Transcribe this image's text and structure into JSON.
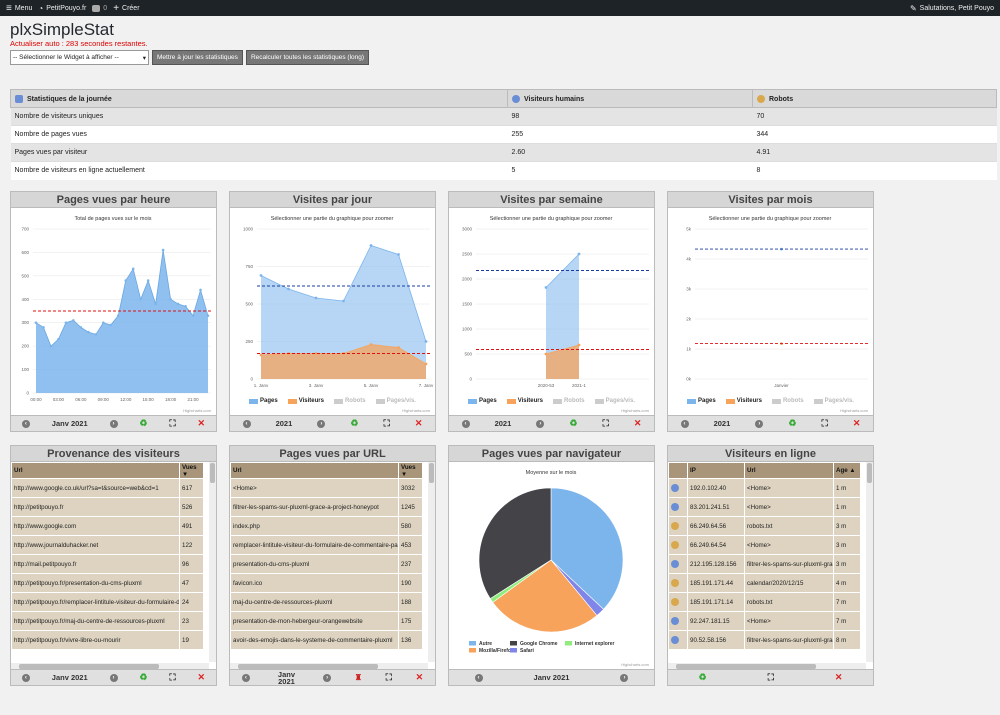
{
  "topbar": {
    "menu": "Menu",
    "site": "PetitPouyo.fr",
    "comments": "0",
    "create": "Créer",
    "greeting": "Salutations, Petit Pouyo"
  },
  "page": {
    "title": "plxSimpleStat",
    "refresh": "Actualiser auto : 283 secondes restantes."
  },
  "controls": {
    "select": "-- Sélectionner le Widget à afficher --",
    "update": "Mettre à jour les statistiques",
    "recalc": "Recalculer toutes les statistiques (long)"
  },
  "stats": {
    "headers": [
      "Statistiques de la journée",
      "Visiteurs humains",
      "Robots"
    ],
    "rows": [
      [
        "Nombre de visiteurs uniques",
        "98",
        "70"
      ],
      [
        "Nombre de pages vues",
        "255",
        "344"
      ],
      [
        "Pages vues par visiteur",
        "2.60",
        "4.91"
      ],
      [
        "Nombre de visiteurs en ligne actuellement",
        "5",
        "8"
      ]
    ]
  },
  "widgets": {
    "w1": {
      "title": "Pages vues par heure",
      "subtitle": "Total de pages vues sur le mois",
      "footer": "Janv 2021",
      "credit": "Highcharts.com"
    },
    "w2": {
      "title": "Visites par jour",
      "subtitle": "Sélectionner une partie du graphique pour zoomer",
      "footer": "2021",
      "credit": "Highcharts.com"
    },
    "w3": {
      "title": "Visites par semaine",
      "subtitle": "Sélectionner une partie du graphique pour zoomer",
      "footer": "2021",
      "credit": "Highcharts.com"
    },
    "w4": {
      "title": "Visites par mois",
      "subtitle": "Sélectionner une partie du graphique pour zoomer",
      "footer": "2021",
      "credit": "Highcharts.com"
    },
    "w5": {
      "title": "Provenance des visiteurs",
      "footer": "Janv 2021",
      "headers": [
        "Url",
        "Vues ▼"
      ],
      "rows": [
        [
          "http://www.google.co.uk/url?sa=t&source=web&cd=1",
          "617"
        ],
        [
          "http://petitpouyo.fr",
          "526"
        ],
        [
          "http://www.google.com",
          "491"
        ],
        [
          "http://www.journalduhacker.net",
          "122"
        ],
        [
          "http://mail.petitpouyo.fr",
          "96"
        ],
        [
          "http://petitpouyo.fr/presentation-du-cms-pluxml",
          "47"
        ],
        [
          "http://petitpouyo.fr/remplacer-lintitule-visiteur-du-formulaire-de-com",
          "24"
        ],
        [
          "http://petitpouyo.fr/maj-du-centre-de-ressources-pluxml",
          "23"
        ],
        [
          "http://petitpouyo.fr/vivre-libre-ou-mourir",
          "19"
        ]
      ]
    },
    "w6": {
      "title": "Pages vues par URL",
      "footer": "Janv 2021",
      "headers": [
        "Url",
        "Vues ▼"
      ],
      "rows": [
        [
          "<Home>",
          "3032"
        ],
        [
          "filtrer-les-spams-sur-pluxml-grace-a-project-honeypot",
          "1245"
        ],
        [
          "index.php",
          "580"
        ],
        [
          "remplacer-lintitule-visiteur-du-formulaire-de-commentaire-par-le-te",
          "453"
        ],
        [
          "presentation-du-cms-pluxml",
          "237"
        ],
        [
          "favicon.ico",
          "190"
        ],
        [
          "maj-du-centre-de-ressources-pluxml",
          "188"
        ],
        [
          "presentation-de-mon-hebergeur-orangewebsite",
          "175"
        ],
        [
          "avoir-des-emojis-dans-le-systeme-de-commentaire-pluxml",
          "136"
        ]
      ]
    },
    "w7": {
      "title": "Pages vues par navigateur",
      "subtitle": "Moyenne sur le mois",
      "footer": "Janv 2021",
      "credit": "Highcharts.com"
    },
    "w8": {
      "title": "Visiteurs en ligne",
      "headers": [
        "",
        "IP",
        "Url",
        "Age ▲"
      ],
      "rows": [
        [
          "h",
          "192.0.102.40",
          "<Home>",
          "1 m"
        ],
        [
          "h",
          "83.201.241.51",
          "<Home>",
          "1 m"
        ],
        [
          "r",
          "66.249.64.56",
          "robots.txt",
          "3 m"
        ],
        [
          "r",
          "66.249.64.54",
          "<Home>",
          "3 m"
        ],
        [
          "h",
          "212.195.128.156",
          "filtrer-les-spams-sur-pluxml-grace-a-pro",
          "3 m"
        ],
        [
          "r",
          "185.191.171.44",
          "calendar/2020/12/15",
          "4 m"
        ],
        [
          "r",
          "185.191.171.14",
          "robots.txt",
          "7 m"
        ],
        [
          "h",
          "92.247.181.15",
          "<Home>",
          "7 m"
        ],
        [
          "h",
          "90.52.58.156",
          "filtrer-les-spams-sur-pluxml-grace-a-pro",
          "8 m"
        ]
      ]
    }
  },
  "legend": {
    "pages": "Pages",
    "visiteurs": "Visiteurs",
    "robots": "Robots",
    "ppv": "Pages/vis."
  },
  "chart_data": [
    {
      "type": "area",
      "x": [
        "00:00",
        "01:00",
        "02:00",
        "03:00",
        "04:00",
        "05:00",
        "06:00",
        "07:00",
        "08:00",
        "09:00",
        "10:00",
        "11:00",
        "12:00",
        "13:00",
        "14:00",
        "15:00",
        "16:00",
        "17:00",
        "18:00",
        "19:00",
        "20:00",
        "21:00",
        "22:00",
        "23:00"
      ],
      "values": [
        300,
        280,
        200,
        230,
        300,
        310,
        280,
        260,
        250,
        300,
        290,
        330,
        480,
        530,
        400,
        480,
        380,
        610,
        400,
        380,
        370,
        330,
        440,
        330
      ],
      "ylim": [
        0,
        700
      ],
      "xticks": [
        "00:00",
        "03:00",
        "06:00",
        "09:00",
        "12:00",
        "15:00",
        "18:00",
        "21:00"
      ],
      "average": 350
    },
    {
      "type": "area",
      "x": [
        "1. Janv",
        "2. Janv",
        "3. Janv",
        "4. Janv",
        "5. Janv",
        "6. Janv",
        "7. Janv"
      ],
      "series": [
        {
          "name": "Pages",
          "values": [
            690,
            600,
            540,
            520,
            890,
            830,
            250
          ]
        },
        {
          "name": "Visiteurs",
          "values": [
            160,
            170,
            170,
            170,
            230,
            210,
            100
          ]
        }
      ],
      "ylim": [
        0,
        1000
      ],
      "xticks": [
        "1. Janv",
        "3. Janv",
        "5. Janv",
        "7. Janv"
      ],
      "avg_pages": 620,
      "avg_visiteurs": 170
    },
    {
      "type": "area",
      "x": [
        "2020-53",
        "2021-1"
      ],
      "series": [
        {
          "name": "Pages",
          "values": [
            1830,
            2500
          ]
        },
        {
          "name": "Visiteurs",
          "values": [
            500,
            680
          ]
        }
      ],
      "ylim": [
        0,
        3000
      ],
      "avg_pages": 2170,
      "avg_visiteurs": 590
    },
    {
      "type": "line",
      "x": [
        "Janvier"
      ],
      "series": [
        {
          "name": "Pages",
          "values": [
            4330
          ]
        },
        {
          "name": "Visiteurs",
          "values": [
            1180
          ]
        }
      ],
      "ylim": [
        0,
        5000
      ],
      "yticks": [
        "0k",
        "1k",
        "2k",
        "3k",
        "4k",
        "5k"
      ],
      "avg_pages": 4330,
      "avg_visiteurs": 1180
    },
    {
      "type": "pie",
      "slices": [
        {
          "name": "Autre",
          "value": 37,
          "color": "#7cb5ec"
        },
        {
          "name": "Safari",
          "value": 2,
          "color": "#8085e9"
        },
        {
          "name": "Mozilla/Firefox",
          "value": 26,
          "color": "#f7a35c"
        },
        {
          "name": "Internet explorer",
          "value": 1,
          "color": "#90ed7d"
        },
        {
          "name": "Google Chrome",
          "value": 34,
          "color": "#434348"
        }
      ]
    }
  ]
}
